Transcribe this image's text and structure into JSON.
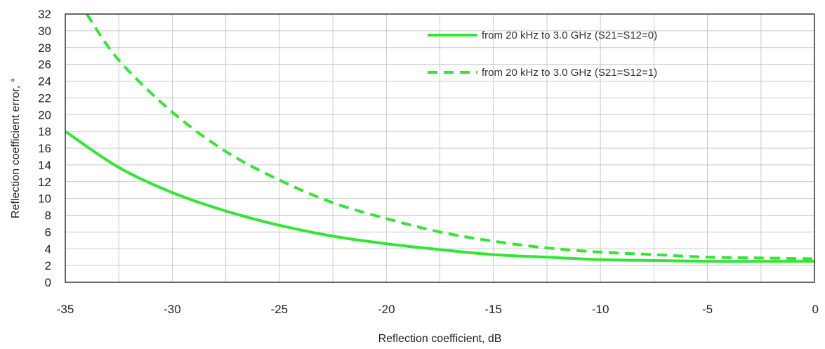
{
  "chart_data": {
    "type": "line",
    "title": "",
    "xlabel": "Reflection coefficient, dB",
    "ylabel": "Reflection coefficient error, °",
    "xlim": [
      -35,
      0
    ],
    "ylim": [
      0,
      32
    ],
    "x_ticks": [
      -35,
      -30,
      -25,
      -20,
      -15,
      -10,
      -5,
      0
    ],
    "x_tick_labels": [
      "-35",
      "-30",
      "-25",
      "-20",
      "-15",
      "-10",
      "-5",
      "0"
    ],
    "y_ticks": [
      0,
      2,
      4,
      6,
      8,
      10,
      12,
      14,
      16,
      18,
      20,
      22,
      24,
      26,
      28,
      30,
      32
    ],
    "y_tick_labels": [
      "0",
      "2",
      "4",
      "6",
      "8",
      "10",
      "12",
      "14",
      "16",
      "18",
      "20",
      "22",
      "24",
      "26",
      "28",
      "30",
      "32"
    ],
    "x_grid_step": 2.5,
    "grid": true,
    "legend_position": "top-right",
    "series": [
      {
        "name": "from 20 kHz to 3.0 GHz (S21=S12=0)",
        "color": "#33e633",
        "style": "solid",
        "x": [
          -35,
          -32.5,
          -30,
          -27.5,
          -25,
          -22.5,
          -20,
          -17.5,
          -15,
          -12.5,
          -10,
          -7.5,
          -5,
          -2.5,
          0
        ],
        "y": [
          18.0,
          13.7,
          10.7,
          8.5,
          6.8,
          5.5,
          4.6,
          3.9,
          3.3,
          3.0,
          2.7,
          2.6,
          2.5,
          2.5,
          2.5
        ]
      },
      {
        "name": "from 20 kHz to 3.0 GHz (S21=S12=1)",
        "color": "#33e633",
        "style": "dashed",
        "x": [
          -34,
          -32.5,
          -30,
          -27.5,
          -25,
          -22.5,
          -20,
          -17.5,
          -15,
          -12.5,
          -10,
          -7.5,
          -5,
          -2.5,
          0
        ],
        "y": [
          32.0,
          26.5,
          20.3,
          15.6,
          12.2,
          9.5,
          7.6,
          6.0,
          4.9,
          4.1,
          3.6,
          3.3,
          3.0,
          2.9,
          2.8
        ]
      }
    ]
  }
}
